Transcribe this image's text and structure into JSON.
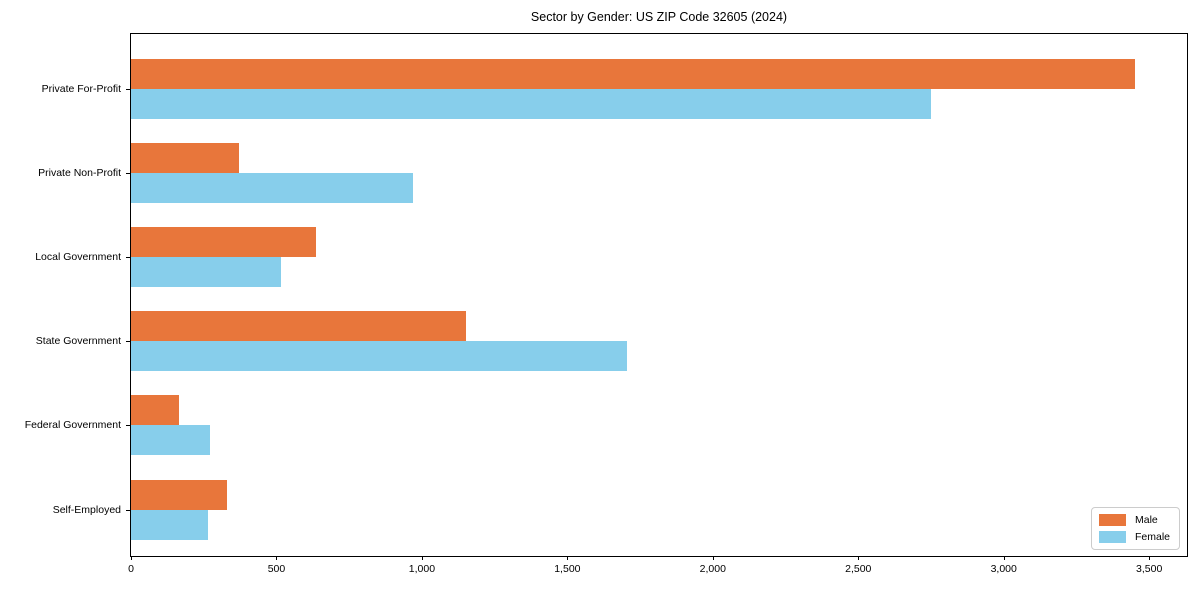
{
  "title": "Sector by Gender: US ZIP Code 32605 (2024)",
  "chart_data": {
    "type": "bar",
    "orientation": "horizontal",
    "title": "Sector by Gender: US ZIP Code 32605 (2024)",
    "xlabel": "",
    "ylabel": "",
    "categories": [
      "Private For-Profit",
      "Private Non-Profit",
      "Local Government",
      "State Government",
      "Federal Government",
      "Self-Employed"
    ],
    "series": [
      {
        "name": "Male",
        "color": "#e8763b",
        "values": [
          3450,
          370,
          635,
          1150,
          165,
          330
        ]
      },
      {
        "name": "Female",
        "color": "#87ceeb",
        "values": [
          2750,
          970,
          515,
          1705,
          270,
          265
        ]
      }
    ],
    "xlim": [
      0,
      3630
    ],
    "xticks": [
      0,
      500,
      1000,
      1500,
      2000,
      2500,
      3000,
      3500
    ],
    "xtick_labels": [
      "0",
      "500",
      "1,000",
      "1,500",
      "2,000",
      "2,500",
      "3,000",
      "3,500"
    ],
    "grid": false,
    "legend": {
      "position": "lower right",
      "entries": [
        "Male",
        "Female"
      ]
    }
  }
}
